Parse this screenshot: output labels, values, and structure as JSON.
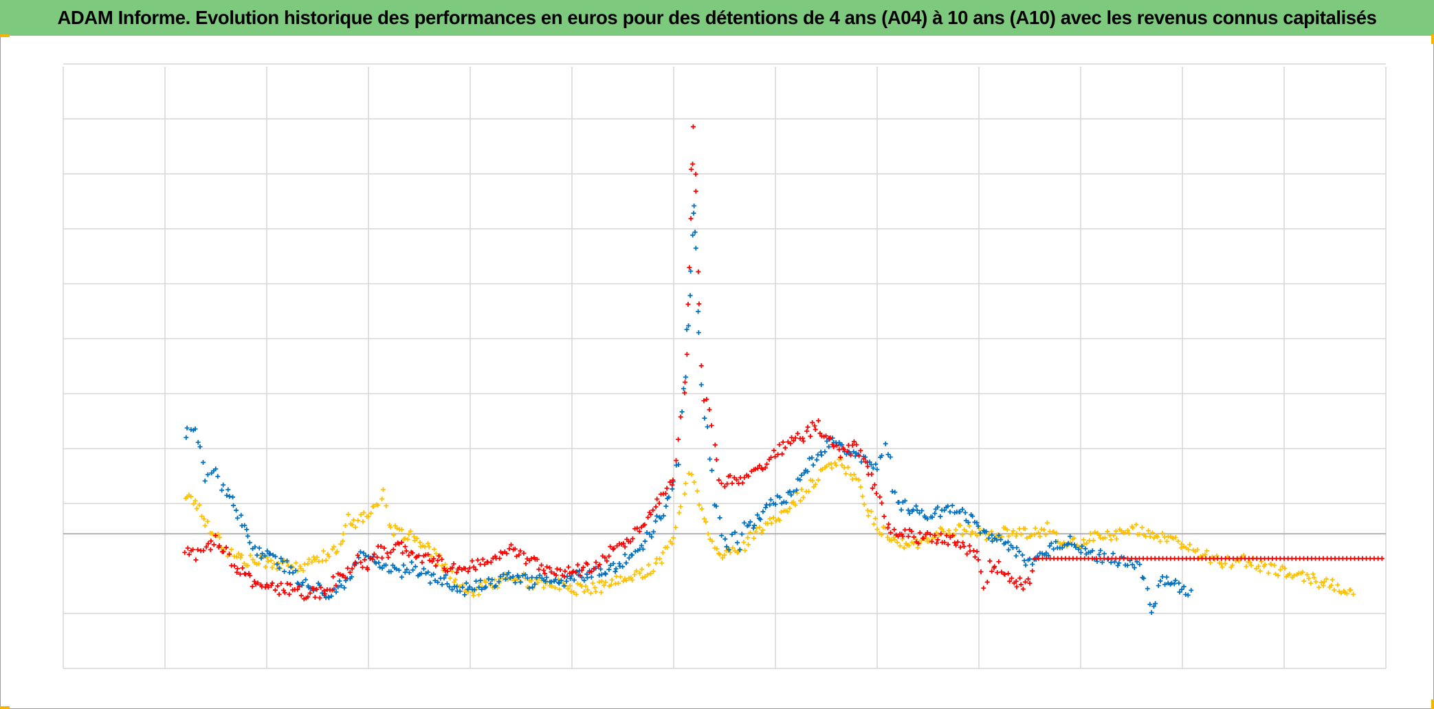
{
  "colors": {
    "header_bg": "#7dc97d",
    "corner": "#f2b500",
    "grid": "#d6d6d6",
    "axis": "#a8a8a8",
    "series": [
      "#ffc000",
      "#0070c0",
      "#ff0000"
    ]
  },
  "chart_data": {
    "type": "scatter",
    "title": "ADAM Informe. Evolution historique des performances en euros pour des détentions de 4 ans (A04) à 10 ans (A10) avec les revenus connus capitalisés",
    "xlabel": "",
    "ylabel": "",
    "tick_labels_shown": false,
    "legend": "none",
    "grid": true,
    "marker": "+",
    "xlim": [
      0,
      130
    ],
    "ylim": [
      -2.45,
      8.5
    ],
    "zero_line": 0,
    "x_gridlines": [
      0,
      10,
      20,
      30,
      40,
      50,
      60,
      70,
      80,
      90,
      100,
      110,
      120,
      130
    ],
    "y_gridlines": [
      -2.45,
      -1.45,
      0.55,
      1.55,
      2.55,
      3.55,
      4.55,
      5.55,
      6.55,
      7.55,
      8.55
    ],
    "series": [
      {
        "color": "#ffc000",
        "points": [
          [
            12.0,
            0.7
          ],
          [
            13.0,
            0.6
          ],
          [
            14.0,
            0.2
          ],
          [
            15.0,
            0.0
          ],
          [
            16.0,
            -0.3
          ],
          [
            17.0,
            -0.4
          ],
          [
            18.0,
            -0.5
          ],
          [
            20.0,
            -0.5
          ],
          [
            22.0,
            -0.6
          ],
          [
            24.0,
            -0.6
          ],
          [
            25.0,
            -0.4
          ],
          [
            26.0,
            -0.4
          ],
          [
            27.0,
            -0.3
          ],
          [
            28.0,
            0.3
          ],
          [
            29.0,
            0.2
          ],
          [
            30.0,
            0.4
          ],
          [
            31.0,
            0.6
          ],
          [
            31.5,
            0.7
          ],
          [
            32.0,
            0.1
          ],
          [
            33.0,
            0.0
          ],
          [
            34.0,
            0.0
          ],
          [
            35.0,
            -0.2
          ],
          [
            36.0,
            -0.3
          ],
          [
            37.0,
            -0.5
          ],
          [
            38.0,
            -0.7
          ],
          [
            39.0,
            -1.0
          ],
          [
            40.0,
            -1.1
          ],
          [
            42.0,
            -0.9
          ],
          [
            44.0,
            -0.8
          ],
          [
            45.0,
            -0.8
          ],
          [
            46.0,
            -0.9
          ],
          [
            48.0,
            -0.9
          ],
          [
            50.0,
            -1.0
          ],
          [
            52.0,
            -1.0
          ],
          [
            54.0,
            -0.9
          ],
          [
            56.0,
            -0.8
          ],
          [
            57.0,
            -0.7
          ],
          [
            58.0,
            -0.6
          ],
          [
            59.0,
            -0.4
          ],
          [
            60.0,
            -0.1
          ],
          [
            60.5,
            0.3
          ],
          [
            61.0,
            0.8
          ],
          [
            61.5,
            1.2
          ],
          [
            62.0,
            0.9
          ],
          [
            62.5,
            0.5
          ],
          [
            63.0,
            0.3
          ],
          [
            64.0,
            -0.2
          ],
          [
            65.0,
            -0.4
          ],
          [
            66.0,
            -0.3
          ],
          [
            67.0,
            -0.2
          ],
          [
            68.0,
            0.0
          ],
          [
            69.0,
            0.1
          ],
          [
            70.0,
            0.3
          ],
          [
            71.0,
            0.4
          ],
          [
            72.0,
            0.6
          ],
          [
            73.0,
            0.8
          ],
          [
            74.0,
            1.0
          ],
          [
            75.0,
            1.2
          ],
          [
            76.0,
            1.3
          ],
          [
            77.0,
            1.2
          ],
          [
            78.0,
            1.0
          ],
          [
            79.0,
            0.5
          ],
          [
            80.0,
            0.1
          ],
          [
            81.0,
            0.0
          ],
          [
            82.0,
            -0.1
          ],
          [
            83.0,
            -0.2
          ],
          [
            84.0,
            -0.2
          ],
          [
            86.0,
            0.0
          ],
          [
            88.0,
            0.1
          ],
          [
            90.0,
            0.0
          ],
          [
            91.0,
            0.0
          ],
          [
            93.0,
            0.0
          ],
          [
            95.0,
            0.0
          ],
          [
            97.0,
            0.1
          ],
          [
            98.0,
            -0.1
          ],
          [
            100.0,
            -0.2
          ],
          [
            102.0,
            0.0
          ],
          [
            104.0,
            0.0
          ],
          [
            106.0,
            0.1
          ],
          [
            108.0,
            -0.1
          ],
          [
            110.0,
            -0.2
          ],
          [
            112.0,
            -0.4
          ],
          [
            114.0,
            -0.5
          ],
          [
            116.0,
            -0.5
          ],
          [
            118.0,
            -0.6
          ],
          [
            120.0,
            -0.7
          ],
          [
            122.0,
            -0.8
          ],
          [
            124.0,
            -0.9
          ],
          [
            126.0,
            -1.0
          ],
          [
            127.0,
            -1.05
          ]
        ]
      },
      {
        "color": "#0070c0",
        "points": [
          [
            12.0,
            1.8
          ],
          [
            12.5,
            2.0
          ],
          [
            13.0,
            1.9
          ],
          [
            13.5,
            1.5
          ],
          [
            14.0,
            0.9
          ],
          [
            14.5,
            1.2
          ],
          [
            15.0,
            1.1
          ],
          [
            15.5,
            0.9
          ],
          [
            16.0,
            0.8
          ],
          [
            17.0,
            0.4
          ],
          [
            18.0,
            0.0
          ],
          [
            19.0,
            -0.3
          ],
          [
            20.0,
            -0.4
          ],
          [
            21.0,
            -0.5
          ],
          [
            22.0,
            -0.6
          ],
          [
            23.0,
            -0.8
          ],
          [
            24.0,
            -0.9
          ],
          [
            25.0,
            -1.0
          ],
          [
            26.0,
            -1.1
          ],
          [
            27.0,
            -1.0
          ],
          [
            28.0,
            -0.8
          ],
          [
            29.0,
            -0.5
          ],
          [
            29.5,
            -0.3
          ],
          [
            30.0,
            -0.4
          ],
          [
            31.0,
            -0.6
          ],
          [
            32.0,
            -0.6
          ],
          [
            33.0,
            -0.7
          ],
          [
            34.0,
            -0.6
          ],
          [
            35.0,
            -0.7
          ],
          [
            36.0,
            -0.8
          ],
          [
            37.0,
            -0.8
          ],
          [
            38.0,
            -0.9
          ],
          [
            39.0,
            -1.0
          ],
          [
            40.0,
            -1.0
          ],
          [
            42.0,
            -0.9
          ],
          [
            44.0,
            -0.8
          ],
          [
            45.0,
            -0.8
          ],
          [
            46.0,
            -0.9
          ],
          [
            47.0,
            -0.8
          ],
          [
            48.0,
            -0.9
          ],
          [
            50.0,
            -0.8
          ],
          [
            52.0,
            -0.7
          ],
          [
            54.0,
            -0.6
          ],
          [
            55.0,
            -0.5
          ],
          [
            56.0,
            -0.3
          ],
          [
            57.0,
            -0.2
          ],
          [
            58.0,
            0.1
          ],
          [
            59.0,
            0.4
          ],
          [
            60.0,
            0.9
          ],
          [
            60.5,
            1.5
          ],
          [
            61.0,
            2.5
          ],
          [
            61.3,
            3.5
          ],
          [
            61.6,
            4.5
          ],
          [
            61.8,
            5.5
          ],
          [
            62.0,
            6.2
          ],
          [
            62.2,
            5.0
          ],
          [
            62.5,
            3.5
          ],
          [
            63.0,
            2.2
          ],
          [
            63.5,
            1.5
          ],
          [
            64.0,
            0.6
          ],
          [
            64.5,
            0.2
          ],
          [
            65.0,
            -0.1
          ],
          [
            65.5,
            -0.2
          ],
          [
            66.0,
            0.0
          ],
          [
            66.5,
            -0.2
          ],
          [
            67.0,
            0.1
          ],
          [
            68.0,
            0.2
          ],
          [
            69.0,
            0.4
          ],
          [
            70.0,
            0.6
          ],
          [
            71.0,
            0.6
          ],
          [
            72.0,
            0.9
          ],
          [
            73.0,
            1.2
          ],
          [
            74.0,
            1.4
          ],
          [
            75.0,
            1.6
          ],
          [
            76.0,
            1.7
          ],
          [
            77.0,
            1.5
          ],
          [
            78.0,
            1.4
          ],
          [
            79.0,
            1.3
          ],
          [
            80.0,
            1.2
          ],
          [
            80.5,
            1.5
          ],
          [
            81.0,
            1.7
          ],
          [
            81.5,
            0.8
          ],
          [
            82.0,
            0.5
          ],
          [
            83.0,
            0.5
          ],
          [
            84.0,
            0.4
          ],
          [
            85.0,
            0.3
          ],
          [
            86.0,
            0.4
          ],
          [
            87.0,
            0.5
          ],
          [
            88.0,
            0.4
          ],
          [
            89.0,
            0.3
          ],
          [
            90.0,
            0.1
          ],
          [
            91.0,
            0.0
          ],
          [
            92.0,
            -0.1
          ],
          [
            93.0,
            -0.2
          ],
          [
            94.0,
            -0.4
          ],
          [
            95.0,
            -0.5
          ],
          [
            96.0,
            -0.4
          ],
          [
            97.0,
            -0.3
          ],
          [
            98.0,
            -0.2
          ],
          [
            99.0,
            -0.1
          ],
          [
            100.0,
            -0.3
          ],
          [
            101.0,
            -0.4
          ],
          [
            102.0,
            -0.4
          ],
          [
            104.0,
            -0.5
          ],
          [
            105.5,
            -0.6
          ],
          [
            106.0,
            -0.7
          ],
          [
            106.5,
            -1.0
          ],
          [
            107.0,
            -1.4
          ],
          [
            108.0,
            -0.8
          ],
          [
            109.0,
            -0.9
          ],
          [
            110.0,
            -1.0
          ],
          [
            111.0,
            -1.05
          ]
        ]
      },
      {
        "color": "#ff0000",
        "points": [
          [
            12.0,
            -0.3
          ],
          [
            13.0,
            -0.4
          ],
          [
            13.5,
            -0.2
          ],
          [
            14.0,
            -0.3
          ],
          [
            15.0,
            -0.1
          ],
          [
            16.0,
            -0.3
          ],
          [
            16.5,
            -0.5
          ],
          [
            17.0,
            -0.6
          ],
          [
            18.0,
            -0.8
          ],
          [
            19.0,
            -0.9
          ],
          [
            20.0,
            -1.0
          ],
          [
            22.0,
            -1.0
          ],
          [
            24.0,
            -1.1
          ],
          [
            25.0,
            -1.1
          ],
          [
            26.0,
            -1.0
          ],
          [
            27.0,
            -0.8
          ],
          [
            28.0,
            -0.7
          ],
          [
            29.0,
            -0.5
          ],
          [
            30.0,
            -0.6
          ],
          [
            31.0,
            -0.3
          ],
          [
            32.0,
            -0.4
          ],
          [
            33.0,
            -0.2
          ],
          [
            34.0,
            -0.4
          ],
          [
            35.0,
            -0.4
          ],
          [
            36.0,
            -0.5
          ],
          [
            37.0,
            -0.5
          ],
          [
            38.0,
            -0.6
          ],
          [
            40.0,
            -0.6
          ],
          [
            42.0,
            -0.5
          ],
          [
            43.0,
            -0.3
          ],
          [
            44.0,
            -0.3
          ],
          [
            45.0,
            -0.4
          ],
          [
            46.0,
            -0.5
          ],
          [
            48.0,
            -0.7
          ],
          [
            50.0,
            -0.7
          ],
          [
            52.0,
            -0.6
          ],
          [
            54.0,
            -0.3
          ],
          [
            55.0,
            -0.2
          ],
          [
            56.0,
            0.0
          ],
          [
            57.0,
            0.2
          ],
          [
            58.0,
            0.5
          ],
          [
            59.0,
            0.7
          ],
          [
            60.0,
            1.0
          ],
          [
            60.5,
            1.5
          ],
          [
            61.0,
            2.3
          ],
          [
            61.3,
            3.5
          ],
          [
            61.6,
            5.0
          ],
          [
            61.8,
            6.5
          ],
          [
            62.0,
            7.4
          ],
          [
            62.2,
            6.0
          ],
          [
            62.5,
            4.0
          ],
          [
            63.0,
            2.5
          ],
          [
            63.5,
            2.2
          ],
          [
            64.0,
            1.7
          ],
          [
            64.5,
            1.0
          ],
          [
            65.0,
            0.9
          ],
          [
            66.0,
            1.0
          ],
          [
            67.0,
            1.0
          ],
          [
            68.0,
            1.2
          ],
          [
            69.0,
            1.3
          ],
          [
            70.0,
            1.5
          ],
          [
            71.0,
            1.6
          ],
          [
            72.0,
            1.7
          ],
          [
            73.0,
            1.8
          ],
          [
            74.0,
            2.0
          ],
          [
            75.0,
            1.8
          ],
          [
            76.0,
            1.5
          ],
          [
            77.0,
            1.5
          ],
          [
            78.0,
            1.6
          ],
          [
            79.0,
            1.2
          ],
          [
            80.0,
            0.7
          ],
          [
            80.5,
            0.5
          ],
          [
            81.0,
            0.1
          ],
          [
            82.0,
            0.0
          ],
          [
            83.0,
            0.0
          ],
          [
            84.0,
            -0.1
          ],
          [
            85.0,
            0.0
          ],
          [
            86.0,
            -0.1
          ],
          [
            87.0,
            -0.1
          ],
          [
            88.0,
            -0.2
          ],
          [
            89.0,
            -0.3
          ],
          [
            90.0,
            -0.4
          ],
          [
            90.5,
            -1.05
          ],
          [
            91.0,
            -0.6
          ],
          [
            92.0,
            -0.6
          ],
          [
            93.0,
            -0.8
          ],
          [
            94.0,
            -0.9
          ],
          [
            95.0,
            -0.9
          ],
          [
            95.5,
            -0.45
          ],
          [
            100.0,
            -0.45
          ],
          [
            105.0,
            -0.45
          ],
          [
            110.0,
            -0.45
          ],
          [
            115.0,
            -0.45
          ],
          [
            120.0,
            -0.45
          ],
          [
            125.0,
            -0.45
          ],
          [
            130.0,
            -0.45
          ]
        ]
      }
    ]
  }
}
